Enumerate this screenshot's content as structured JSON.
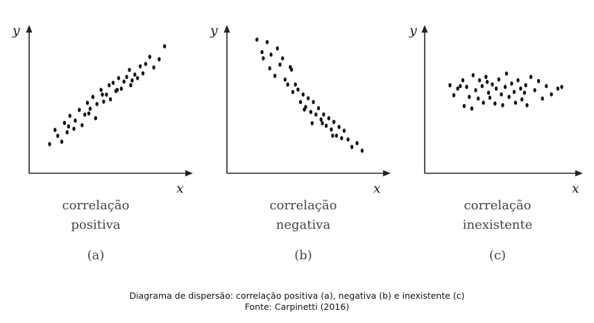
{
  "chart_data": [
    {
      "type": "scatter",
      "xlabel": "x",
      "ylabel": "y",
      "label_lines": [
        "correlação",
        "positiva"
      ],
      "tag": "(a)",
      "grid": false,
      "xlim": [
        0,
        10
      ],
      "ylim": [
        0,
        10
      ],
      "points": [
        [
          1.1,
          1.3
        ],
        [
          1.5,
          2.5
        ],
        [
          1.7,
          2.0
        ],
        [
          2.0,
          1.5
        ],
        [
          2.2,
          3.1
        ],
        [
          2.4,
          2.3
        ],
        [
          2.6,
          3.7
        ],
        [
          2.9,
          2.6
        ],
        [
          3.0,
          3.3
        ],
        [
          3.3,
          4.2
        ],
        [
          3.5,
          2.9
        ],
        [
          3.7,
          3.8
        ],
        [
          3.9,
          4.8
        ],
        [
          4.1,
          4.3
        ],
        [
          4.3,
          5.3
        ],
        [
          4.5,
          3.5
        ],
        [
          4.6,
          4.7
        ],
        [
          4.9,
          5.9
        ],
        [
          5.1,
          4.9
        ],
        [
          5.3,
          5.5
        ],
        [
          5.5,
          6.3
        ],
        [
          5.6,
          5.1
        ],
        [
          5.8,
          6.5
        ],
        [
          6.0,
          5.8
        ],
        [
          6.2,
          6.9
        ],
        [
          6.4,
          6.0
        ],
        [
          6.6,
          6.6
        ],
        [
          6.8,
          7.0
        ],
        [
          7.0,
          7.6
        ],
        [
          7.2,
          6.7
        ],
        [
          7.4,
          7.2
        ],
        [
          7.6,
          6.9
        ],
        [
          7.8,
          7.9
        ],
        [
          8.0,
          7.3
        ],
        [
          8.2,
          8.1
        ],
        [
          8.5,
          8.7
        ],
        [
          8.8,
          7.8
        ],
        [
          9.2,
          8.5
        ],
        [
          9.6,
          9.6
        ],
        [
          2.5,
          2.8
        ],
        [
          4.0,
          3.9
        ],
        [
          5.0,
          5.5
        ],
        [
          6.1,
          5.9
        ],
        [
          7.1,
          6.3
        ]
      ]
    },
    {
      "type": "scatter",
      "xlabel": "x",
      "ylabel": "y",
      "label_lines": [
        "correlação",
        "negativa"
      ],
      "tag": "(b)",
      "grid": false,
      "xlim": [
        0,
        10
      ],
      "ylim": [
        0,
        10
      ],
      "points": [
        [
          1.2,
          9.6
        ],
        [
          1.6,
          8.6
        ],
        [
          1.7,
          8.1
        ],
        [
          2.0,
          9.4
        ],
        [
          2.2,
          7.3
        ],
        [
          2.3,
          8.4
        ],
        [
          2.6,
          6.7
        ],
        [
          2.8,
          8.9
        ],
        [
          3.0,
          7.6
        ],
        [
          3.2,
          8.1
        ],
        [
          3.4,
          6.4
        ],
        [
          3.6,
          6.0
        ],
        [
          3.8,
          7.4
        ],
        [
          4.0,
          5.4
        ],
        [
          4.2,
          6.0
        ],
        [
          4.4,
          5.6
        ],
        [
          4.6,
          4.6
        ],
        [
          4.8,
          5.2
        ],
        [
          5.0,
          4.2
        ],
        [
          5.2,
          4.9
        ],
        [
          5.4,
          3.8
        ],
        [
          5.6,
          4.6
        ],
        [
          5.8,
          3.6
        ],
        [
          6.0,
          4.1
        ],
        [
          6.2,
          3.2
        ],
        [
          6.4,
          3.6
        ],
        [
          6.6,
          2.7
        ],
        [
          6.8,
          3.3
        ],
        [
          7.0,
          2.4
        ],
        [
          7.2,
          3.0
        ],
        [
          7.4,
          1.9
        ],
        [
          7.6,
          2.6
        ],
        [
          7.8,
          1.7
        ],
        [
          8.0,
          2.3
        ],
        [
          8.3,
          1.6
        ],
        [
          8.6,
          1.0
        ],
        [
          9.0,
          1.3
        ],
        [
          9.4,
          0.7
        ],
        [
          3.9,
          7.2
        ],
        [
          4.9,
          4.0
        ],
        [
          5.5,
          2.9
        ],
        [
          6.3,
          2.9
        ],
        [
          7.1,
          1.9
        ]
      ]
    },
    {
      "type": "scatter",
      "xlabel": "x",
      "ylabel": "y",
      "label_lines": [
        "correlação",
        "inexistente"
      ],
      "tag": "(c)",
      "grid": false,
      "xlim": [
        0,
        10
      ],
      "ylim": [
        0,
        10
      ],
      "points": [
        [
          1.0,
          6.0
        ],
        [
          1.3,
          4.8
        ],
        [
          1.6,
          5.6
        ],
        [
          2.0,
          6.6
        ],
        [
          2.1,
          3.5
        ],
        [
          2.3,
          5.8
        ],
        [
          2.5,
          4.6
        ],
        [
          2.7,
          3.2
        ],
        [
          2.8,
          7.2
        ],
        [
          3.0,
          5.4
        ],
        [
          3.2,
          4.4
        ],
        [
          3.3,
          6.6
        ],
        [
          3.5,
          5.9
        ],
        [
          3.6,
          3.9
        ],
        [
          3.8,
          7.0
        ],
        [
          4.0,
          5.1
        ],
        [
          4.1,
          4.5
        ],
        [
          4.3,
          6.1
        ],
        [
          4.5,
          3.8
        ],
        [
          4.6,
          5.6
        ],
        [
          4.8,
          6.7
        ],
        [
          5.0,
          4.9
        ],
        [
          5.1,
          3.6
        ],
        [
          5.3,
          5.8
        ],
        [
          5.4,
          7.4
        ],
        [
          5.6,
          4.6
        ],
        [
          5.8,
          6.2
        ],
        [
          6.0,
          5.2
        ],
        [
          6.1,
          3.9
        ],
        [
          6.3,
          6.6
        ],
        [
          6.5,
          5.6
        ],
        [
          6.6,
          4.3
        ],
        [
          6.8,
          5.1
        ],
        [
          7.0,
          3.6
        ],
        [
          7.3,
          7.0
        ],
        [
          7.6,
          5.4
        ],
        [
          7.9,
          6.5
        ],
        [
          8.2,
          4.4
        ],
        [
          8.5,
          5.9
        ],
        [
          8.9,
          4.9
        ],
        [
          9.4,
          5.6
        ],
        [
          9.7,
          5.8
        ],
        [
          1.8,
          5.9
        ],
        [
          3.9,
          6.4
        ],
        [
          6.9,
          6.0
        ]
      ]
    }
  ],
  "caption": {
    "line1": "Diagrama de dispersão: correlação positiva (a), negativa (b) e inexistente (c)",
    "line2": "Fonte: Carpinetti (2016)"
  }
}
